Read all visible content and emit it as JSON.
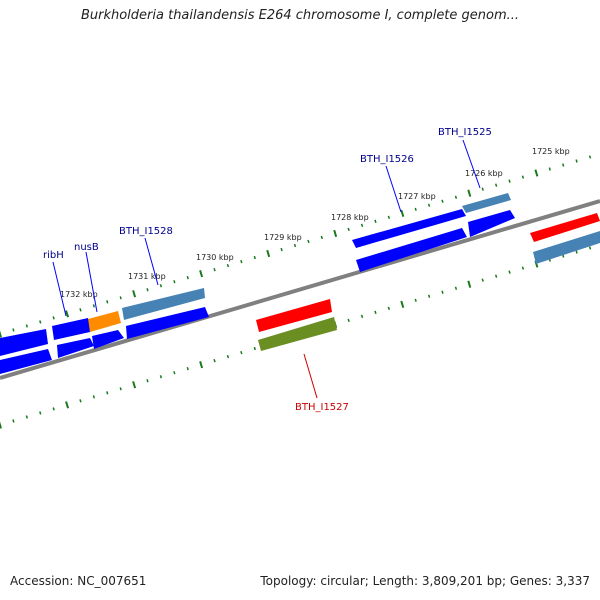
{
  "title": "Burkholderia thailandensis E264 chromosome I, complete genom...",
  "footer": {
    "accession": "Accession: NC_007651",
    "topology": "Topology: circular; Length: 3,809,201 bp; Genes: 3,337"
  },
  "colors": {
    "background": "#ffffff",
    "backbone": "#808080",
    "tick": "#1a7a1a",
    "forward_gene": "#0000ff",
    "forward_gene_alt": "#4682b4",
    "highlight_gene": "#ff8c00",
    "reverse_highlight": "#ff0000",
    "olive_gene": "#6b8e23",
    "label_blue": "#00008b",
    "label_red": "#cc0000"
  },
  "scale_labels": [
    "1725 kbp",
    "1726 kbp",
    "1727 kbp",
    "1728 kbp",
    "1729 kbp",
    "1730 kbp",
    "1731 kbp",
    "1732 kbp"
  ],
  "gene_labels": [
    {
      "text": "BTH_I1525",
      "color": "blue"
    },
    {
      "text": "BTH_I1526",
      "color": "blue"
    },
    {
      "text": "BTH_I1528",
      "color": "blue"
    },
    {
      "text": "nusB",
      "color": "blue"
    },
    {
      "text": "ribH",
      "color": "blue"
    },
    {
      "text": "BTH_I1527",
      "color": "red"
    }
  ]
}
